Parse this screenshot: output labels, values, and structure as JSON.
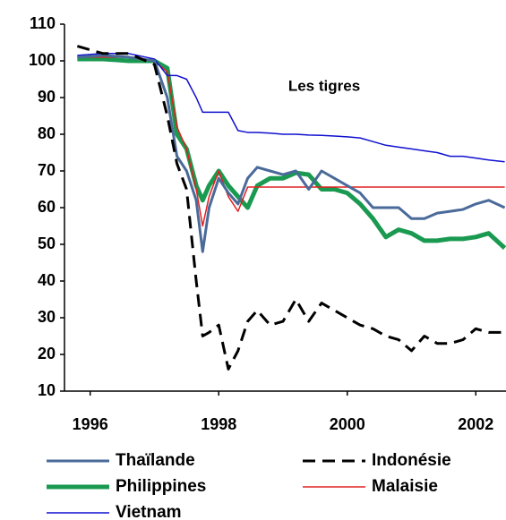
{
  "chart_data": {
    "type": "line",
    "annotation": "Les tigres",
    "x": [
      1995.8,
      1996.2,
      1996.6,
      1997.0,
      1997.2,
      1997.35,
      1997.5,
      1997.65,
      1997.75,
      1997.85,
      1998.0,
      1998.15,
      1998.3,
      1998.45,
      1998.6,
      1998.8,
      1999.0,
      1999.2,
      1999.4,
      1999.6,
      1999.8,
      2000.0,
      2000.2,
      2000.4,
      2000.6,
      2000.8,
      2001.0,
      2001.2,
      2001.4,
      2001.6,
      2001.8,
      2002.0,
      2002.2,
      2002.45
    ],
    "series": [
      {
        "name": "Thaïlande",
        "color": "#4a6a9a",
        "width": 3,
        "dash": false,
        "values": [
          101,
          101.5,
          101,
          100,
          90,
          74,
          70,
          62,
          48,
          60,
          68,
          64,
          61,
          68,
          71,
          70,
          69,
          70,
          65,
          70,
          68,
          66,
          64,
          60,
          60,
          60,
          57,
          57,
          58.5,
          59,
          59.5,
          61,
          62,
          60
        ]
      },
      {
        "name": "Indonésie",
        "color": "#000000",
        "width": 3,
        "dash": true,
        "values": [
          104,
          102,
          102,
          99,
          85,
          72,
          65,
          40,
          25,
          26,
          28,
          16,
          21,
          29,
          32,
          28,
          29,
          35,
          29,
          34,
          32,
          30,
          28,
          27,
          25,
          24,
          21,
          25,
          23,
          23,
          24,
          27,
          26,
          26
        ]
      },
      {
        "name": "Philippines",
        "color": "#1a9a50",
        "width": 5,
        "dash": false,
        "values": [
          100.5,
          100.5,
          100,
          100,
          98,
          80,
          76,
          66,
          62,
          66,
          70,
          66,
          63,
          60,
          66,
          68,
          68,
          69.5,
          69,
          65,
          65,
          64,
          61,
          57,
          52,
          54,
          53,
          51,
          51,
          51.5,
          51.5,
          52,
          53,
          49
        ]
      },
      {
        "name": "Malaisie",
        "color": "#e02020",
        "width": 1.5,
        "dash": false,
        "values": [
          101,
          101,
          101,
          100,
          97,
          82,
          76,
          65,
          55,
          63,
          70,
          63,
          59,
          65.6,
          65.6,
          65.6,
          65.6,
          65.6,
          65.6,
          65.6,
          65.6,
          65.6,
          65.6,
          65.6,
          65.6,
          65.6,
          65.6,
          65.6,
          65.6,
          65.6,
          65.6,
          65.6,
          65.6,
          65.6
        ]
      },
      {
        "name": "Vietnam",
        "color": "#1010d0",
        "width": 1.5,
        "dash": false,
        "values": [
          101.5,
          102,
          102,
          100.5,
          96,
          96,
          95,
          90,
          86,
          86,
          86,
          86,
          81,
          80.5,
          80.5,
          80.3,
          80,
          80,
          79.8,
          79.7,
          79.5,
          79.3,
          79,
          78,
          77,
          76.5,
          76,
          75.5,
          75,
          74,
          74,
          73.5,
          73,
          72.5
        ]
      }
    ],
    "xlim": [
      1995.6,
      2002.47
    ],
    "xticks": [
      1996,
      1998,
      2000,
      2002
    ],
    "ylim": [
      10,
      110
    ],
    "yticks": [
      10,
      20,
      30,
      40,
      50,
      60,
      70,
      80,
      90,
      100,
      110
    ]
  }
}
